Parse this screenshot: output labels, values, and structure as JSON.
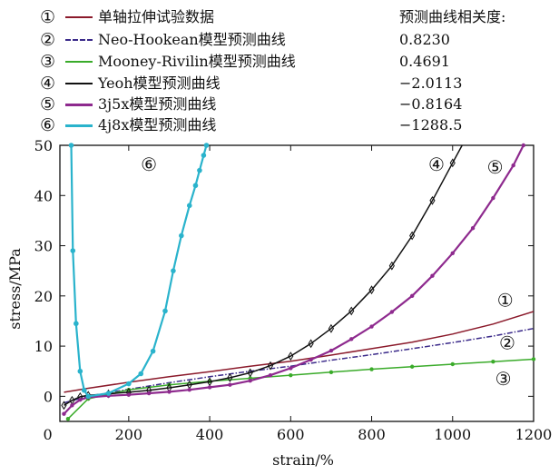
{
  "chart_data": {
    "type": "line",
    "legend_header": "预测曲线相关度:",
    "xlabel": "strain/%",
    "ylabel": "stress/MPa",
    "xlim": [
      30,
      1200
    ],
    "ylim": [
      -5,
      50
    ],
    "xticks": [
      0,
      200,
      400,
      600,
      800,
      1000,
      1200
    ],
    "yticks": [
      0,
      10,
      20,
      30,
      40,
      50
    ],
    "grid": false,
    "legend_position": "top",
    "series": [
      {
        "marker": "①",
        "name": "单轴拉伸试验数据",
        "correlation": "",
        "color": "#8b1a2b",
        "style": "solid",
        "x": [
          40,
          100,
          200,
          300,
          400,
          500,
          600,
          700,
          800,
          900,
          1000,
          1100,
          1200
        ],
        "y": [
          0.8,
          1.6,
          2.8,
          3.9,
          4.9,
          6.0,
          7.0,
          8.2,
          9.5,
          10.8,
          12.4,
          14.4,
          16.9
        ]
      },
      {
        "marker": "②",
        "name": "Neo-Hookean模型预测曲线",
        "correlation": "0.8230",
        "color": "#3b2a8a",
        "style": "dashdot",
        "x": [
          40,
          100,
          200,
          300,
          400,
          500,
          600,
          700,
          800,
          900,
          1000,
          1100,
          1200
        ],
        "y": [
          -1.3,
          0.0,
          1.4,
          2.7,
          3.9,
          5.0,
          6.0,
          7.2,
          8.3,
          9.5,
          10.7,
          12.0,
          13.5
        ]
      },
      {
        "marker": "③",
        "name": "Mooney-Rivilin模型预测曲线",
        "correlation": "0.4691",
        "color": "#3aab2a",
        "style": "solid",
        "x": [
          50,
          100,
          200,
          300,
          400,
          500,
          600,
          700,
          800,
          900,
          1000,
          1100,
          1200
        ],
        "y": [
          -4.5,
          -0.5,
          1.3,
          2.3,
          3.0,
          3.6,
          4.2,
          4.8,
          5.4,
          5.9,
          6.4,
          6.9,
          7.4
        ]
      },
      {
        "marker": "④",
        "name": "Yeoh模型预测曲线",
        "correlation": "−2.0113",
        "color": "#111111",
        "style": "solid",
        "x": [
          40,
          60,
          80,
          100,
          150,
          200,
          250,
          300,
          350,
          400,
          450,
          500,
          550,
          600,
          650,
          700,
          750,
          800,
          850,
          900,
          950,
          1000,
          1030
        ],
        "y": [
          -1.8,
          -0.8,
          -0.1,
          0.2,
          0.5,
          0.8,
          1.2,
          1.7,
          2.3,
          2.9,
          3.7,
          4.7,
          6.1,
          8.0,
          10.5,
          13.5,
          17.0,
          21.2,
          26.0,
          32.0,
          39.0,
          46.5,
          51
        ]
      },
      {
        "marker": "⑤",
        "name": "3j5x模型预测曲线",
        "correlation": "−0.8164",
        "color": "#8e2a8e",
        "style": "solid",
        "x": [
          40,
          60,
          80,
          100,
          150,
          200,
          250,
          300,
          350,
          400,
          450,
          500,
          550,
          600,
          650,
          700,
          750,
          800,
          850,
          900,
          950,
          1000,
          1050,
          1100,
          1150,
          1175
        ],
        "y": [
          -3.5,
          -1.8,
          -0.7,
          -0.2,
          0.1,
          0.3,
          0.6,
          0.9,
          1.3,
          1.8,
          2.3,
          3.1,
          4.2,
          5.6,
          7.3,
          9.1,
          11.4,
          13.9,
          16.8,
          20.0,
          24.0,
          28.5,
          33.5,
          39.5,
          46.0,
          50
        ]
      },
      {
        "marker": "⑥",
        "name": "4j8x模型预测曲线",
        "correlation": "−1288.5",
        "color": "#2ab3cc",
        "style": "solid",
        "x": [
          58,
          62,
          70,
          80,
          90,
          100,
          150,
          200,
          230,
          260,
          290,
          310,
          330,
          350,
          365,
          375,
          385,
          392
        ],
        "y": [
          50,
          29,
          14.5,
          5.0,
          1.2,
          0.0,
          0.6,
          2.5,
          4.5,
          9.0,
          17.0,
          25.0,
          32.0,
          38.0,
          42.0,
          45.0,
          48.0,
          50
        ]
      }
    ],
    "curve_labels": [
      {
        "text": "⑥",
        "x": 250,
        "y": 46
      },
      {
        "text": "④",
        "x": 960,
        "y": 46
      },
      {
        "text": "⑤",
        "x": 1105,
        "y": 45.5
      },
      {
        "text": "①",
        "x": 1130,
        "y": 19
      },
      {
        "text": "②",
        "x": 1135,
        "y": 10.5
      },
      {
        "text": "③",
        "x": 1125,
        "y": 3.3
      }
    ]
  }
}
